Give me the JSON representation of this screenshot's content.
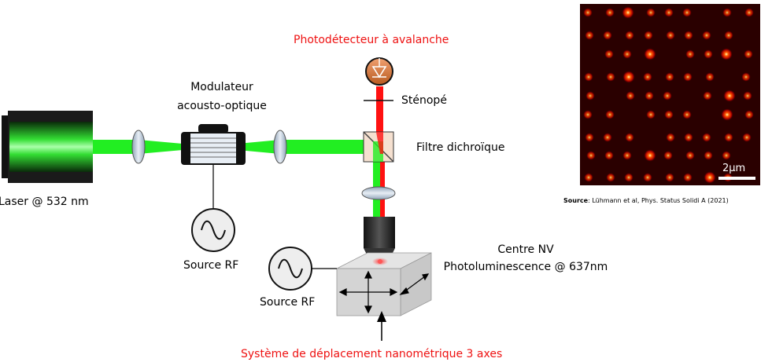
{
  "labels": {
    "laser": "Laser @ 532 nm",
    "modulator_line1": "Modulateur",
    "modulator_line2": "acousto-optique",
    "rf_source_1": "Source RF",
    "rf_source_2": "Source RF",
    "photodetector": "Photodétecteur à avalanche",
    "pinhole": "Sténopé",
    "dichroic_filter": "Filtre dichroïque",
    "nv_center_line1": "Centre NV",
    "nv_center_line2": "Photoluminescence @ 637nm",
    "stage": "Système de déplacement nanométrique 3 axes"
  },
  "inset": {
    "scale_bar": "2μm",
    "source_label": "Source",
    "source_text": ": Lühmann et al, Phys. Status Solidi A (2021)"
  },
  "colors": {
    "green_beam": "#22ee22",
    "red_beam": "#ff1111",
    "red_label": "#ee1111",
    "inset_bg": "#2a0000"
  }
}
